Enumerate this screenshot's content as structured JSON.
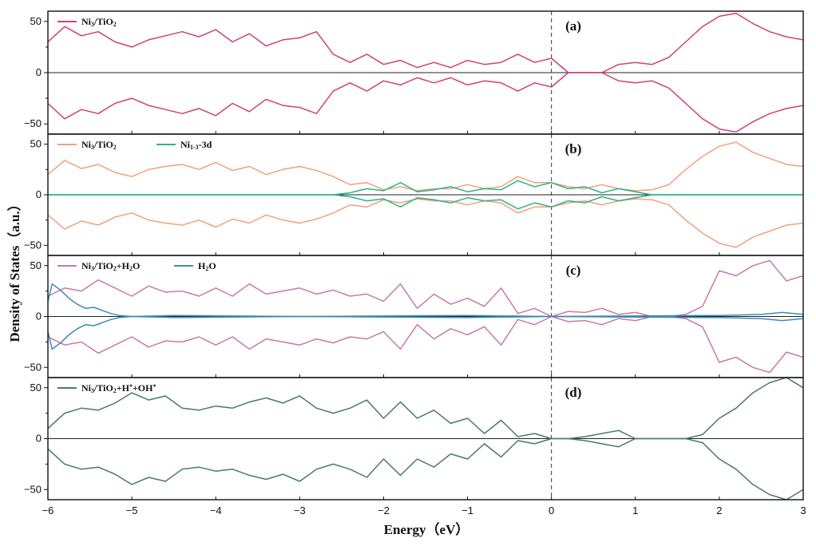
{
  "chart_data": {
    "type": "line",
    "xlabel": "Energy（eV）",
    "ylabel": "Density of States（a.u.）",
    "xlim": [
      -6,
      3
    ],
    "xticks": [
      "−6",
      "−5",
      "−4",
      "−3",
      "−2",
      "−1",
      "0",
      "1",
      "2",
      "3"
    ],
    "fermi_level": 0,
    "grid": false,
    "panels": [
      {
        "tag": "(a)",
        "ylim": [
          -60,
          60
        ],
        "yticks": [
          "50",
          "0",
          "−50"
        ],
        "legend": [
          {
            "name": "Ni3/TiO2",
            "parts": [
              [
                "Ni",
                "n"
              ],
              [
                "3",
                "sub"
              ],
              [
                "/TiO",
                "n"
              ],
              [
                "2",
                "sub"
              ]
            ],
            "color": "#d1416e"
          }
        ],
        "series": [
          {
            "name": "Ni3/TiO2",
            "color": "#d1416e",
            "mirror": true,
            "x": [
              -6.0,
              -5.8,
              -5.6,
              -5.4,
              -5.2,
              -5.0,
              -4.8,
              -4.6,
              -4.4,
              -4.2,
              -4.0,
              -3.8,
              -3.6,
              -3.4,
              -3.2,
              -3.0,
              -2.8,
              -2.6,
              -2.4,
              -2.2,
              -2.0,
              -1.8,
              -1.6,
              -1.4,
              -1.2,
              -1.0,
              -0.8,
              -0.6,
              -0.4,
              -0.2,
              0.0,
              0.2,
              0.4,
              0.6,
              0.8,
              1.0,
              1.2,
              1.4,
              1.6,
              1.8,
              2.0,
              2.2,
              2.4,
              2.6,
              2.8,
              3.0
            ],
            "y": [
              30,
              45,
              36,
              40,
              30,
              25,
              32,
              36,
              40,
              35,
              42,
              30,
              38,
              26,
              32,
              34,
              40,
              18,
              10,
              18,
              8,
              12,
              5,
              10,
              5,
              12,
              8,
              10,
              18,
              10,
              14,
              0,
              0,
              0,
              8,
              10,
              8,
              15,
              30,
              45,
              55,
              58,
              48,
              40,
              35,
              32
            ]
          }
        ]
      },
      {
        "tag": "(b)",
        "ylim": [
          -60,
          60
        ],
        "yticks": [
          "50",
          "0",
          "−50"
        ],
        "legend": [
          {
            "name": "Ni3/TiO2",
            "parts": [
              [
                "Ni",
                "n"
              ],
              [
                "3",
                "sub"
              ],
              [
                "/TiO",
                "n"
              ],
              [
                "2",
                "sub"
              ]
            ],
            "color": "#f2a07b"
          },
          {
            "name": "Ni1-3-3d",
            "parts": [
              [
                "Ni",
                "n"
              ],
              [
                "1-3",
                "sub"
              ],
              [
                "-3d",
                "n"
              ]
            ],
            "color": "#2bb38a"
          }
        ],
        "series": [
          {
            "name": "Ni3/TiO2",
            "color": "#f2a07b",
            "mirror": true,
            "x": [
              -6.0,
              -5.8,
              -5.6,
              -5.4,
              -5.2,
              -5.0,
              -4.8,
              -4.6,
              -4.4,
              -4.2,
              -4.0,
              -3.8,
              -3.6,
              -3.4,
              -3.2,
              -3.0,
              -2.8,
              -2.6,
              -2.4,
              -2.2,
              -2.0,
              -1.8,
              -1.6,
              -1.4,
              -1.2,
              -1.0,
              -0.8,
              -0.6,
              -0.4,
              -0.2,
              0.0,
              0.2,
              0.4,
              0.6,
              0.8,
              1.0,
              1.2,
              1.4,
              1.6,
              1.8,
              2.0,
              2.2,
              2.4,
              2.6,
              2.8,
              3.0
            ],
            "y": [
              20,
              34,
              26,
              30,
              22,
              18,
              25,
              28,
              30,
              25,
              32,
              24,
              28,
              20,
              25,
              28,
              24,
              18,
              10,
              12,
              5,
              8,
              4,
              6,
              6,
              10,
              6,
              8,
              18,
              12,
              12,
              8,
              6,
              10,
              6,
              4,
              5,
              10,
              25,
              38,
              48,
              52,
              42,
              36,
              30,
              28
            ]
          },
          {
            "name": "Ni1-3-3d",
            "color": "#2bb38a",
            "mirror": true,
            "x": [
              -6.0,
              -2.6,
              -2.4,
              -2.2,
              -2.0,
              -1.8,
              -1.6,
              -1.4,
              -1.2,
              -1.0,
              -0.8,
              -0.6,
              -0.4,
              -0.2,
              0.0,
              0.2,
              0.4,
              0.6,
              0.8,
              1.0,
              1.2,
              3.0
            ],
            "y": [
              0,
              0,
              2,
              6,
              4,
              12,
              3,
              5,
              8,
              3,
              6,
              5,
              14,
              8,
              12,
              6,
              8,
              2,
              6,
              3,
              0,
              0
            ]
          }
        ]
      },
      {
        "tag": "(c)",
        "ylim": [
          -60,
          60
        ],
        "yticks": [
          "50",
          "0",
          "−50"
        ],
        "legend": [
          {
            "name": "Ni3/TiO2+H2O",
            "parts": [
              [
                "Ni",
                "n"
              ],
              [
                "3",
                "sub"
              ],
              [
                "/TiO",
                "n"
              ],
              [
                "2",
                "sub"
              ],
              [
                "+H",
                "n"
              ],
              [
                "2",
                "sub"
              ],
              [
                "O",
                "n"
              ]
            ],
            "color": "#c97ba4"
          },
          {
            "name": "H2O",
            "parts": [
              [
                "H",
                "n"
              ],
              [
                "2",
                "sub"
              ],
              [
                "O",
                "n"
              ]
            ],
            "color": "#3d8bb5"
          }
        ],
        "series": [
          {
            "name": "Ni3/TiO2+H2O",
            "color": "#c97ba4",
            "mirror": true,
            "x": [
              -6.0,
              -5.8,
              -5.6,
              -5.4,
              -5.2,
              -5.0,
              -4.8,
              -4.6,
              -4.4,
              -4.2,
              -4.0,
              -3.8,
              -3.6,
              -3.4,
              -3.2,
              -3.0,
              -2.8,
              -2.6,
              -2.4,
              -2.2,
              -2.0,
              -1.8,
              -1.6,
              -1.4,
              -1.2,
              -1.0,
              -0.8,
              -0.6,
              -0.4,
              -0.2,
              0.0,
              0.2,
              0.4,
              0.6,
              0.8,
              1.0,
              1.2,
              1.4,
              1.6,
              1.8,
              2.0,
              2.2,
              2.4,
              2.6,
              2.8,
              3.0
            ],
            "y": [
              20,
              28,
              25,
              36,
              28,
              20,
              30,
              24,
              25,
              20,
              28,
              20,
              32,
              22,
              25,
              28,
              22,
              26,
              20,
              22,
              15,
              32,
              8,
              22,
              12,
              18,
              10,
              28,
              3,
              8,
              0,
              5,
              4,
              8,
              2,
              4,
              0,
              0,
              2,
              10,
              45,
              40,
              50,
              55,
              35,
              40
            ]
          },
          {
            "name": "H2O",
            "color": "#3d8bb5",
            "mirror": true,
            "x": [
              -6.0,
              -5.95,
              -5.85,
              -5.75,
              -5.65,
              -5.55,
              -5.45,
              -5.35,
              -5.25,
              -5.15,
              -5.0,
              -4.5,
              -3.0,
              -1.0,
              0.0,
              2.0,
              2.5,
              2.75,
              3.0
            ],
            "y": [
              15,
              32,
              26,
              18,
              12,
              8,
              9,
              6,
              3,
              1,
              0,
              1,
              0,
              1,
              0,
              1,
              2,
              4,
              2
            ]
          }
        ]
      },
      {
        "tag": "(d)",
        "ylim": [
          -60,
          60
        ],
        "yticks": [
          "50",
          "0",
          "−50"
        ],
        "legend": [
          {
            "name": "Ni3/TiO2+H*+OH*",
            "parts": [
              [
                "Ni",
                "n"
              ],
              [
                "3",
                "sub"
              ],
              [
                "/TiO",
                "n"
              ],
              [
                "2",
                "sub"
              ],
              [
                "+H",
                "n"
              ],
              [
                "*",
                "sup"
              ],
              [
                "+OH",
                "n"
              ],
              [
                "*",
                "sup"
              ]
            ],
            "color": "#4a7a6a"
          }
        ],
        "series": [
          {
            "name": "Ni3/TiO2+H*+OH*",
            "color": "#4a7a6a",
            "mirror": true,
            "x": [
              -6.0,
              -5.8,
              -5.6,
              -5.4,
              -5.2,
              -5.0,
              -4.8,
              -4.6,
              -4.4,
              -4.2,
              -4.0,
              -3.8,
              -3.6,
              -3.4,
              -3.2,
              -3.0,
              -2.8,
              -2.6,
              -2.4,
              -2.2,
              -2.0,
              -1.8,
              -1.6,
              -1.4,
              -1.2,
              -1.0,
              -0.8,
              -0.6,
              -0.4,
              -0.2,
              0.0,
              0.2,
              0.4,
              0.6,
              0.8,
              1.0,
              1.2,
              1.4,
              1.6,
              1.8,
              2.0,
              2.2,
              2.4,
              2.6,
              2.8,
              3.0
            ],
            "y": [
              10,
              25,
              30,
              28,
              35,
              45,
              38,
              42,
              30,
              28,
              32,
              30,
              36,
              40,
              35,
              42,
              30,
              25,
              30,
              38,
              20,
              36,
              20,
              28,
              15,
              20,
              5,
              18,
              2,
              5,
              0,
              0,
              2,
              5,
              8,
              0,
              0,
              0,
              0,
              4,
              20,
              30,
              45,
              55,
              60,
              50
            ]
          }
        ]
      }
    ]
  }
}
